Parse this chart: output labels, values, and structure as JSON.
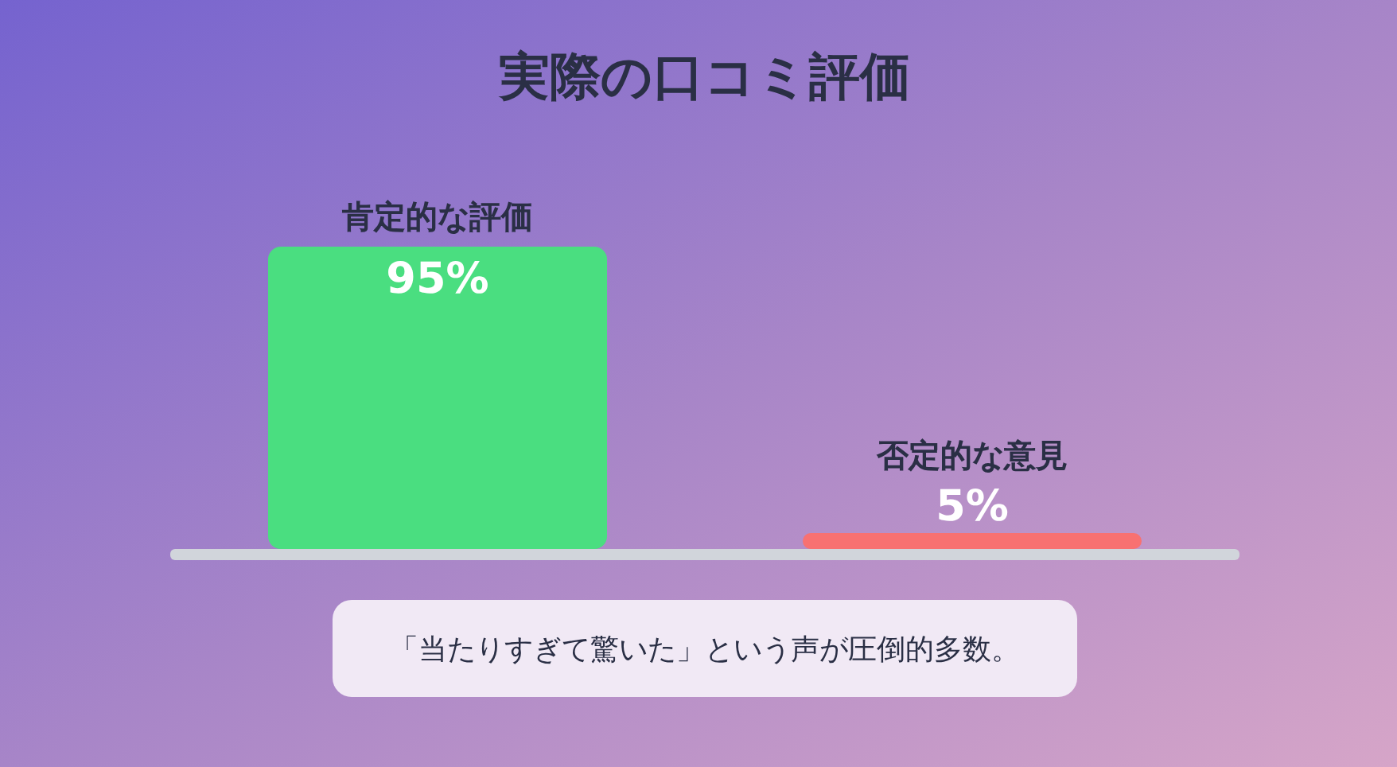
{
  "chart_data": {
    "type": "bar",
    "title": "実際の口コミ評価",
    "categories": [
      "肯定的な評価",
      "否定的な意見"
    ],
    "values": [
      95,
      5
    ],
    "colors": [
      "#4ade80",
      "#f87171"
    ],
    "value_labels": [
      "95%",
      "5%"
    ],
    "annotations": [
      "「当たりすぎて驚いた」という声が圧倒的多数。"
    ]
  }
}
